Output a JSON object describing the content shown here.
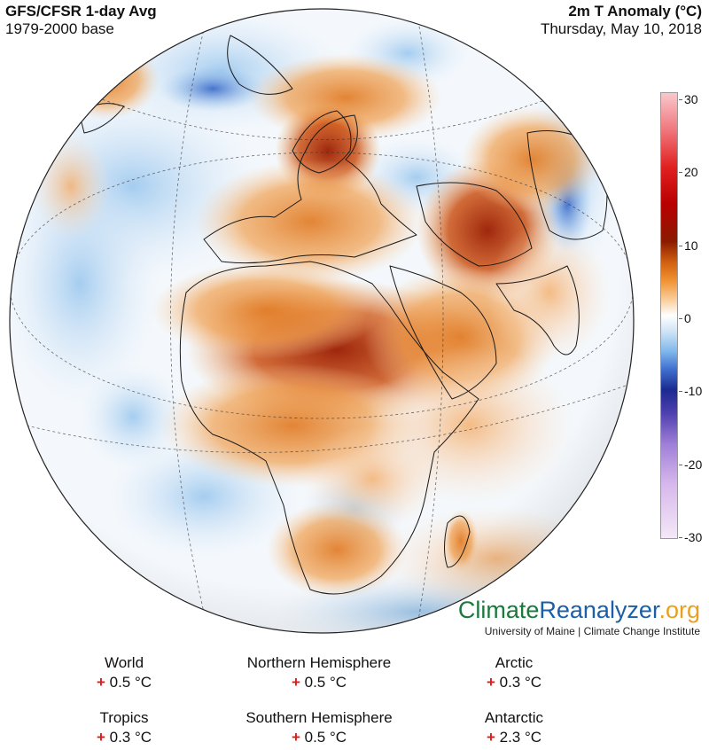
{
  "header": {
    "title_left": "GFS/CFSR 1-day Avg",
    "subtitle_left": "1979-2000 base",
    "title_right": "2m T Anomaly (°C)",
    "subtitle_right": "Thursday, May 10, 2018"
  },
  "colorbar": {
    "ticks": [
      "30",
      "20",
      "10",
      "0",
      "-10",
      "-20",
      "-30"
    ],
    "colors": {
      "warm_max": "#f8c8cc",
      "red": "#e02020",
      "dark_red": "#8a1a00",
      "orange": "#f09030",
      "zero": "#ffffff",
      "light_blue": "#80b8ec",
      "navy": "#1a2a90",
      "purple": "#a080d8",
      "cold_min": "#f4e8f8"
    }
  },
  "logo": {
    "part1": "Climate",
    "part2": "Reanalyzer",
    "part3": ".org",
    "subtitle": "University of Maine | Climate Change Institute"
  },
  "stats": [
    {
      "name": "World",
      "sign": "+",
      "value": "0.5 °C"
    },
    {
      "name": "Northern Hemisphere",
      "sign": "+",
      "value": "0.5 °C"
    },
    {
      "name": "Arctic",
      "sign": "+",
      "value": "0.3 °C"
    },
    {
      "name": "Tropics",
      "sign": "+",
      "value": "0.3 °C"
    },
    {
      "name": "Southern Hemisphere",
      "sign": "+",
      "value": "0.5 °C"
    },
    {
      "name": "Antarctic",
      "sign": "+",
      "value": "2.3 °C"
    }
  ]
}
